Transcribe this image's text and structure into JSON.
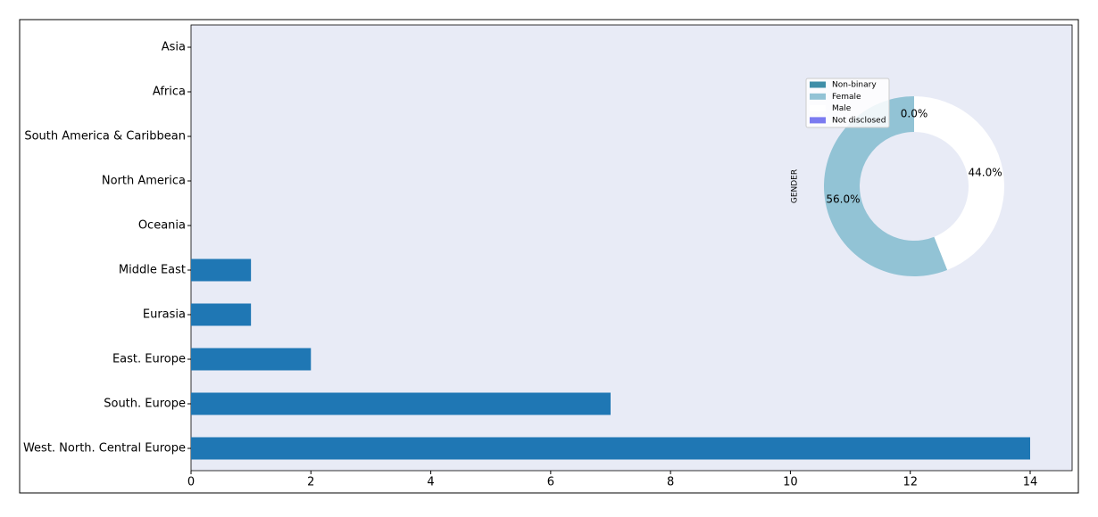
{
  "chart_data": [
    {
      "type": "barh",
      "categories": [
        "Asia",
        "Africa",
        "South America & Caribbean",
        "North America",
        "Oceania",
        "Middle East",
        "Eurasia",
        "East. Europe",
        "South. Europe",
        "West. North. Central Europe"
      ],
      "values": [
        0,
        0,
        0,
        0,
        0,
        1,
        1,
        2,
        7,
        14
      ],
      "color": "#1f77b4",
      "xlim": [
        0,
        14.7
      ],
      "xticks": [
        0,
        2,
        4,
        6,
        8,
        10,
        12,
        14
      ]
    },
    {
      "type": "pie",
      "ylabel": "GENDER",
      "categories": [
        "Non-binary",
        "Female",
        "Male",
        "Not disclosed"
      ],
      "values": [
        0,
        56,
        44,
        0
      ],
      "value_labels": [
        "0.0%",
        "56.0%",
        "44.0%",
        "0.0%"
      ],
      "colors": [
        "#3f8fa8",
        "#92c3d5",
        "#ffffff",
        "#7b7bf0"
      ]
    }
  ]
}
